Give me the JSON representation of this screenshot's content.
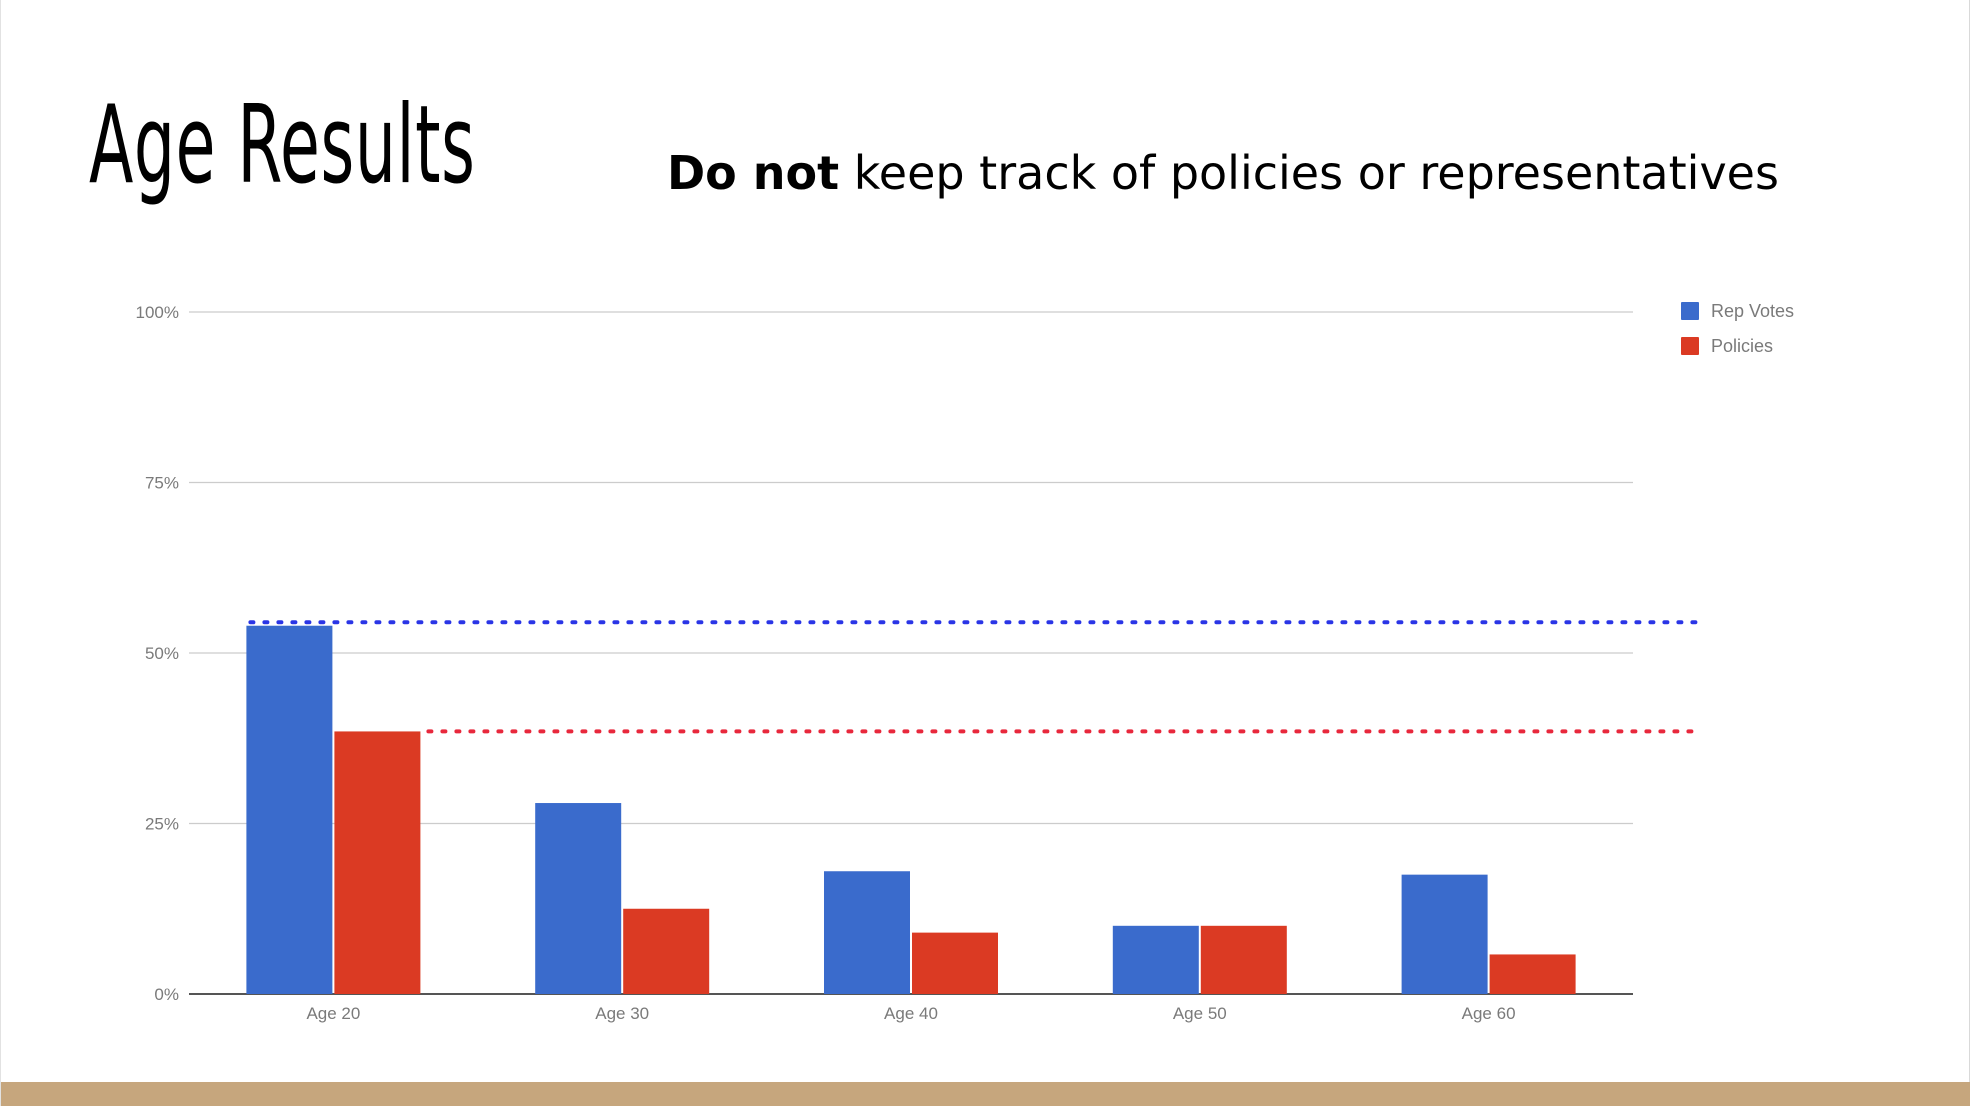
{
  "slide": {
    "title": "Age Results",
    "subtitle_bold": "Do not",
    "subtitle_rest": " keep track of policies or representatives"
  },
  "colors": {
    "rep_votes": "#3a6bcc",
    "policies": "#db3a23",
    "ref_blue": "#2a35e6",
    "ref_red": "#e8283c",
    "footer": "#c6a67d"
  },
  "chart_data": {
    "type": "bar",
    "categories": [
      "Age 20",
      "Age 30",
      "Age 40",
      "Age 50",
      "Age 60"
    ],
    "series": [
      {
        "name": "Rep Votes",
        "values": [
          54,
          28,
          18,
          10,
          17.5
        ]
      },
      {
        "name": "Policies",
        "values": [
          38.5,
          12.5,
          9,
          10,
          5.8
        ]
      }
    ],
    "y_ticks": [
      "0%",
      "25%",
      "50%",
      "75%",
      "100%"
    ],
    "ylim": [
      0,
      100
    ],
    "grid": true,
    "legend": "right",
    "reference_lines": [
      {
        "series": "Rep Votes",
        "value": 54.5,
        "style": "dotted"
      },
      {
        "series": "Policies",
        "value": 38.5,
        "style": "dotted"
      }
    ]
  }
}
